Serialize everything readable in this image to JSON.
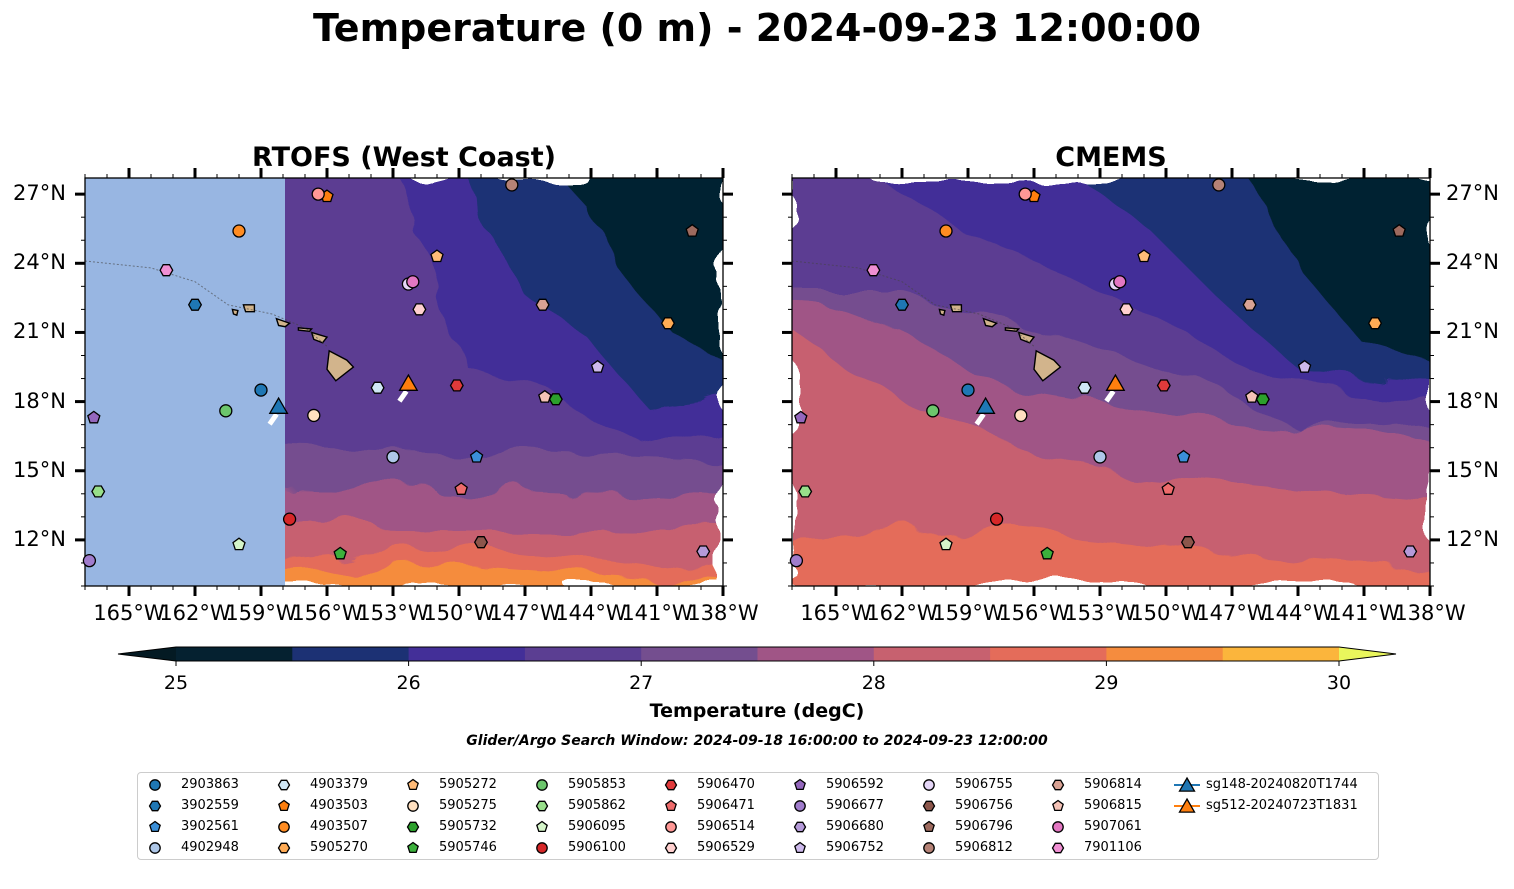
{
  "title": "Temperature (0 m) - 2024-09-23 12:00:00",
  "panels": [
    {
      "title": "RTOFS (West Coast)"
    },
    {
      "title": "CMEMS"
    }
  ],
  "map": {
    "lon_range": [
      -167,
      -138
    ],
    "lat_range": [
      10,
      27.7
    ],
    "lon_ticks": [
      "165°W",
      "162°W",
      "159°W",
      "156°W",
      "153°W",
      "150°W",
      "147°W",
      "144°W",
      "141°W",
      "138°W"
    ],
    "lat_ticks": [
      "27°N",
      "24°N",
      "21°N",
      "18°N",
      "15°N",
      "12°N"
    ],
    "land_color": "#d2b48c",
    "missing_data_color": "#98b6e2"
  },
  "colorbar": {
    "label": "Temperature (degC)",
    "ticks": [
      "25",
      "26",
      "27",
      "28",
      "29",
      "30"
    ],
    "levels": [
      25,
      25.5,
      26,
      26.5,
      27,
      27.5,
      28,
      28.5,
      29,
      29.5,
      30
    ],
    "colors": [
      "#052130",
      "#1c3174",
      "#432f98",
      "#5b3e92",
      "#744e8f",
      "#a05586",
      "#c7616f",
      "#e46c5a",
      "#f58c3e",
      "#fbb53c",
      "#f8d640"
    ],
    "extend_low_color": "#041a23",
    "extend_high_color": "#e9f65c"
  },
  "search_window": "Glider/Argo Search Window: 2024-09-18 16:00:00 to 2024-09-23 12:00:00",
  "legend": [
    {
      "id": "2903863",
      "marker": "circle",
      "color": "#1f77b4"
    },
    {
      "id": "3902559",
      "marker": "hexagon",
      "color": "#1f77b4"
    },
    {
      "id": "3902561",
      "marker": "pentagon",
      "color": "#3b8fd8"
    },
    {
      "id": "4902948",
      "marker": "circle",
      "color": "#aec7e8"
    },
    {
      "id": "4903379",
      "marker": "hexagon",
      "color": "#cfe6f5"
    },
    {
      "id": "4903503",
      "marker": "pentagon",
      "color": "#ff7f0e"
    },
    {
      "id": "4903507",
      "marker": "circle",
      "color": "#ff8c22"
    },
    {
      "id": "5905270",
      "marker": "hexagon",
      "color": "#ffab55"
    },
    {
      "id": "5905272",
      "marker": "pentagon",
      "color": "#ffbb78"
    },
    {
      "id": "5905275",
      "marker": "circle",
      "color": "#ffe0c0"
    },
    {
      "id": "5905732",
      "marker": "hexagon",
      "color": "#2ca02c"
    },
    {
      "id": "5905746",
      "marker": "pentagon",
      "color": "#3cb03c"
    },
    {
      "id": "5905853",
      "marker": "circle",
      "color": "#6cc66c"
    },
    {
      "id": "5905862",
      "marker": "hexagon",
      "color": "#98df8a"
    },
    {
      "id": "5906095",
      "marker": "pentagon",
      "color": "#d5f5c9"
    },
    {
      "id": "5906100",
      "marker": "circle",
      "color": "#d62728"
    },
    {
      "id": "5906470",
      "marker": "hexagon",
      "color": "#e03a3b"
    },
    {
      "id": "5906471",
      "marker": "pentagon",
      "color": "#ee6b6b"
    },
    {
      "id": "5906514",
      "marker": "circle",
      "color": "#ff9896"
    },
    {
      "id": "5906529",
      "marker": "hexagon",
      "color": "#ffd0cf"
    },
    {
      "id": "5906592",
      "marker": "pentagon",
      "color": "#9467bd"
    },
    {
      "id": "5906677",
      "marker": "circle",
      "color": "#a07ccc"
    },
    {
      "id": "5906680",
      "marker": "hexagon",
      "color": "#b59ad9"
    },
    {
      "id": "5906752",
      "marker": "pentagon",
      "color": "#cdb9ec"
    },
    {
      "id": "5906755",
      "marker": "circle",
      "color": "#e5d6f7"
    },
    {
      "id": "5906756",
      "marker": "hexagon",
      "color": "#8c564b"
    },
    {
      "id": "5906796",
      "marker": "pentagon",
      "color": "#9d6a5e"
    },
    {
      "id": "5906812",
      "marker": "circle",
      "color": "#b58276"
    },
    {
      "id": "5906814",
      "marker": "hexagon",
      "color": "#d9a294"
    },
    {
      "id": "5906815",
      "marker": "pentagon",
      "color": "#f4c2b6"
    },
    {
      "id": "5907061",
      "marker": "circle",
      "color": "#e377c2"
    },
    {
      "id": "7901106",
      "marker": "hexagon",
      "color": "#f08fd3"
    },
    {
      "id": "sg148-20240820T1744",
      "marker": "triangle-line",
      "color": "#1f77b4"
    },
    {
      "id": "sg512-20240723T1831",
      "marker": "triangle-line",
      "color": "#ff7f0e"
    }
  ],
  "observations": [
    {
      "id": "2903863",
      "lon": -159.0,
      "lat": 18.5
    },
    {
      "id": "3902559",
      "lon": -162.0,
      "lat": 22.2
    },
    {
      "id": "3902561",
      "lon": -149.2,
      "lat": 15.6
    },
    {
      "id": "4902948",
      "lon": -153.0,
      "lat": 15.6
    },
    {
      "id": "4903379",
      "lon": -153.7,
      "lat": 18.6
    },
    {
      "id": "4903503",
      "lon": -156.0,
      "lat": 26.9
    },
    {
      "id": "4903507",
      "lon": -160.0,
      "lat": 25.4
    },
    {
      "id": "5905270",
      "lon": -140.5,
      "lat": 21.4
    },
    {
      "id": "5905272",
      "lon": -151.0,
      "lat": 24.3
    },
    {
      "id": "5905275",
      "lon": -156.6,
      "lat": 17.4
    },
    {
      "id": "5905732",
      "lon": -145.6,
      "lat": 18.1
    },
    {
      "id": "5905746",
      "lon": -155.4,
      "lat": 11.4
    },
    {
      "id": "5905853",
      "lon": -160.6,
      "lat": 17.6
    },
    {
      "id": "5905862",
      "lon": -166.4,
      "lat": 14.1
    },
    {
      "id": "5906095",
      "lon": -160.0,
      "lat": 11.8
    },
    {
      "id": "5906100",
      "lon": -157.7,
      "lat": 12.9
    },
    {
      "id": "5906470",
      "lon": -150.1,
      "lat": 18.7
    },
    {
      "id": "5906471",
      "lon": -149.9,
      "lat": 14.2
    },
    {
      "id": "5906514",
      "lon": -156.4,
      "lat": 27.0
    },
    {
      "id": "5906529",
      "lon": -151.8,
      "lat": 22.0
    },
    {
      "id": "5906592",
      "lon": -166.6,
      "lat": 17.3
    },
    {
      "id": "5906677",
      "lon": -166.8,
      "lat": 11.1
    },
    {
      "id": "5906680",
      "lon": -138.9,
      "lat": 11.5
    },
    {
      "id": "5906752",
      "lon": -143.7,
      "lat": 19.5
    },
    {
      "id": "5906755",
      "lon": -152.3,
      "lat": 23.1
    },
    {
      "id": "5906756",
      "lon": -149.0,
      "lat": 11.9
    },
    {
      "id": "5906796",
      "lon": -139.4,
      "lat": 25.4
    },
    {
      "id": "5906812",
      "lon": -147.6,
      "lat": 27.4
    },
    {
      "id": "5906814",
      "lon": -146.2,
      "lat": 22.2
    },
    {
      "id": "5906815",
      "lon": -146.1,
      "lat": 18.2
    },
    {
      "id": "5907061",
      "lon": -152.1,
      "lat": 23.2
    },
    {
      "id": "7901106",
      "lon": -163.3,
      "lat": 23.7
    },
    {
      "id": "sg148-20240820T1744",
      "lon": -158.2,
      "lat": 17.8
    },
    {
      "id": "sg512-20240723T1831",
      "lon": -152.3,
      "lat": 18.8
    }
  ]
}
